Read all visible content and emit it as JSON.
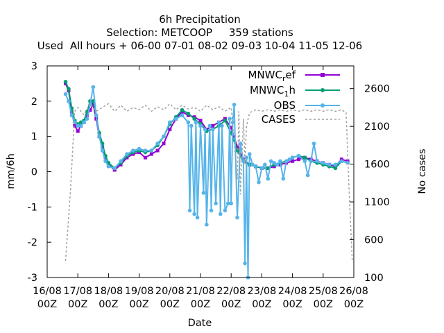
{
  "chart_data": {
    "type": "line",
    "title_lines": [
      "6h Precipitation",
      "Selection: METCOOP     359 stations",
      "Used  All hours + 06-00 07-01 08-02 09-03 10-04 11-05 12-06"
    ],
    "xlabel": "Date",
    "ylabel": "mm/6h",
    "y2label": "No cases",
    "xlim_days": [
      16,
      26
    ],
    "ylim": [
      -3,
      3
    ],
    "y2lim": [
      100,
      2900
    ],
    "x_ticks": [
      {
        "day": 16,
        "line1": "16/08",
        "line2": "00Z"
      },
      {
        "day": 17,
        "line1": "17/08",
        "line2": "00Z"
      },
      {
        "day": 18,
        "line1": "18/08",
        "line2": "00Z"
      },
      {
        "day": 19,
        "line1": "19/08",
        "line2": "00Z"
      },
      {
        "day": 20,
        "line1": "20/08",
        "line2": "00Z"
      },
      {
        "day": 21,
        "line1": "21/08",
        "line2": "00Z"
      },
      {
        "day": 22,
        "line1": "22/08",
        "line2": "00Z"
      },
      {
        "day": 23,
        "line1": "23/08",
        "line2": "00Z"
      },
      {
        "day": 24,
        "line1": "24/08",
        "line2": "00Z"
      },
      {
        "day": 25,
        "line1": "25/08",
        "line2": "00Z"
      },
      {
        "day": 26,
        "line1": "26/08",
        "line2": "00Z"
      }
    ],
    "y_ticks": [
      {
        "value": -3,
        "label": "-3"
      },
      {
        "value": -2,
        "label": "-2"
      },
      {
        "value": -1,
        "label": "-1"
      },
      {
        "value": 0,
        "label": "0"
      },
      {
        "value": 1,
        "label": "1"
      },
      {
        "value": 2,
        "label": "2"
      },
      {
        "value": 3,
        "label": "3"
      }
    ],
    "y2_ticks": [
      {
        "value": 100,
        "label": "100"
      },
      {
        "value": 600,
        "label": "600"
      },
      {
        "value": 1100,
        "label": "1100"
      },
      {
        "value": 1600,
        "label": "1600"
      },
      {
        "value": 2100,
        "label": "2100"
      },
      {
        "value": 2600,
        "label": "2600"
      }
    ],
    "legend_position": "top-right",
    "series": [
      {
        "name_main": "MNWC",
        "name_sub": "r",
        "name_tail": "ef",
        "color": "#9400d3",
        "marker": "square",
        "axis": "y1",
        "x": [
          16.6,
          16.7,
          16.8,
          16.9,
          17.0,
          17.1,
          17.2,
          17.3,
          17.4,
          17.5,
          17.6,
          17.7,
          17.8,
          17.9,
          18.0,
          18.2,
          18.4,
          18.6,
          18.8,
          19.0,
          19.2,
          19.4,
          19.6,
          19.8,
          20.0,
          20.2,
          20.4,
          20.6,
          20.8,
          21.0,
          21.2,
          21.4,
          21.6,
          21.8,
          22.0,
          22.2,
          22.4,
          22.6,
          22.8,
          23.0,
          23.2,
          23.4,
          23.6,
          23.8,
          24.0,
          24.2,
          24.4,
          24.6,
          24.8,
          25.0,
          25.2,
          25.4,
          25.6,
          25.8
        ],
        "values": [
          2.5,
          2.3,
          1.7,
          1.3,
          1.15,
          1.3,
          1.4,
          1.6,
          1.75,
          1.9,
          1.5,
          1.0,
          0.7,
          0.4,
          0.2,
          0.05,
          0.2,
          0.4,
          0.5,
          0.55,
          0.4,
          0.5,
          0.6,
          0.8,
          1.2,
          1.5,
          1.7,
          1.6,
          1.55,
          1.45,
          1.2,
          1.3,
          1.4,
          1.5,
          1.25,
          0.7,
          0.35,
          0.2,
          0.15,
          0.1,
          0.1,
          0.15,
          0.2,
          0.25,
          0.3,
          0.35,
          0.4,
          0.35,
          0.3,
          0.25,
          0.2,
          0.15,
          0.35,
          0.3
        ]
      },
      {
        "name_main": "MNWC",
        "name_sub": "1",
        "name_tail": "h",
        "color": "#009e73",
        "marker": "circle",
        "axis": "y1",
        "x": [
          16.6,
          16.7,
          16.8,
          16.9,
          17.0,
          17.1,
          17.2,
          17.3,
          17.4,
          17.5,
          17.6,
          17.7,
          17.8,
          17.9,
          18.0,
          18.2,
          18.4,
          18.6,
          18.8,
          19.0,
          19.2,
          19.4,
          19.6,
          19.8,
          20.0,
          20.2,
          20.4,
          20.6,
          20.8,
          21.0,
          21.2,
          21.4,
          21.6,
          21.8,
          22.0,
          22.2,
          22.4,
          22.6,
          22.8,
          23.0,
          23.2,
          23.4,
          23.6,
          23.8,
          24.0,
          24.2,
          24.4,
          24.6,
          24.8,
          25.0,
          25.2,
          25.4,
          25.6,
          25.8
        ],
        "values": [
          2.55,
          2.35,
          1.8,
          1.45,
          1.35,
          1.4,
          1.45,
          1.7,
          2.0,
          2.0,
          1.6,
          1.1,
          0.8,
          0.45,
          0.25,
          0.1,
          0.25,
          0.45,
          0.55,
          0.6,
          0.55,
          0.6,
          0.75,
          1.0,
          1.35,
          1.55,
          1.75,
          1.65,
          1.5,
          1.35,
          1.15,
          1.2,
          1.3,
          1.45,
          1.1,
          0.6,
          0.3,
          0.2,
          0.15,
          0.1,
          0.1,
          0.2,
          0.25,
          0.3,
          0.4,
          0.45,
          0.4,
          0.3,
          0.25,
          0.2,
          0.15,
          0.1,
          0.3,
          0.25
        ]
      },
      {
        "name_main": "OBS",
        "name_sub": "",
        "name_tail": "",
        "color": "#56b4e9",
        "marker": "circle",
        "axis": "y1",
        "x": [
          16.6,
          16.7,
          16.8,
          16.9,
          17.0,
          17.1,
          17.2,
          17.3,
          17.4,
          17.5,
          17.6,
          17.7,
          17.8,
          17.9,
          18.0,
          18.2,
          18.4,
          18.6,
          18.8,
          19.0,
          19.2,
          19.4,
          19.6,
          19.8,
          20.0,
          20.2,
          20.4,
          20.6,
          20.65,
          20.7,
          20.8,
          20.85,
          20.9,
          21.0,
          21.1,
          21.15,
          21.2,
          21.3,
          21.35,
          21.4,
          21.5,
          21.6,
          21.65,
          21.7,
          21.8,
          21.9,
          21.95,
          22.0,
          22.05,
          22.1,
          22.2,
          22.3,
          22.4,
          22.45,
          22.5,
          22.55,
          22.6,
          22.7,
          22.8,
          22.9,
          23.0,
          23.1,
          23.2,
          23.3,
          23.4,
          23.5,
          23.6,
          23.7,
          23.8,
          23.9,
          24.0,
          24.2,
          24.4,
          24.5,
          24.6,
          24.7,
          24.8,
          25.0,
          25.2,
          25.4,
          25.6,
          25.8
        ],
        "values": [
          2.2,
          2.0,
          1.6,
          1.4,
          1.3,
          1.3,
          1.4,
          1.5,
          1.9,
          2.4,
          1.6,
          1.0,
          0.6,
          0.3,
          0.15,
          0.1,
          0.3,
          0.5,
          0.6,
          0.65,
          0.6,
          0.6,
          0.8,
          1.0,
          1.4,
          1.5,
          1.6,
          1.4,
          -1.1,
          1.3,
          -1.2,
          1.4,
          -1.3,
          1.3,
          -0.6,
          1.2,
          -1.5,
          1.3,
          -1.1,
          1.2,
          -0.9,
          1.4,
          -1.2,
          1.3,
          -1.1,
          -0.9,
          1.5,
          -0.9,
          1.4,
          1.9,
          -1.3,
          0.8,
          0.3,
          -2.6,
          0.4,
          -3.0,
          0.5,
          0.2,
          0.15,
          -0.3,
          0.1,
          0.2,
          -0.2,
          0.3,
          0.25,
          0.2,
          0.3,
          -0.2,
          0.3,
          0.35,
          0.4,
          0.45,
          0.3,
          -0.1,
          0.3,
          0.8,
          0.3,
          0.25,
          0.2,
          0.2,
          0.3,
          0.25
        ]
      },
      {
        "name_main": "CASES",
        "name_sub": "",
        "name_tail": "",
        "color": "#a0a0a0",
        "marker": "none",
        "dashed": true,
        "axis": "y2",
        "x": [
          16.6,
          16.75,
          16.9,
          17.0,
          17.2,
          17.4,
          17.6,
          17.8,
          18.0,
          18.2,
          18.4,
          18.6,
          18.8,
          19.0,
          19.2,
          19.4,
          19.6,
          19.8,
          20.0,
          20.2,
          20.4,
          20.6,
          20.8,
          21.0,
          21.2,
          21.4,
          21.6,
          21.8,
          22.0,
          22.1,
          22.2,
          22.25,
          22.3,
          22.4,
          22.45,
          22.5,
          22.6,
          22.7,
          22.8,
          23.0,
          23.2,
          23.4,
          23.6,
          23.8,
          24.0,
          24.2,
          24.4,
          24.6,
          24.8,
          25.0,
          25.2,
          25.4,
          25.6,
          25.75,
          25.85,
          25.95
        ],
        "values": [
          320,
          1200,
          2300,
          2350,
          2250,
          2400,
          2300,
          2350,
          2400,
          2300,
          2380,
          2300,
          2350,
          2320,
          2380,
          2300,
          2360,
          2320,
          2400,
          2320,
          2380,
          2330,
          2350,
          2300,
          2380,
          2320,
          2360,
          2300,
          2350,
          1900,
          1400,
          2300,
          1200,
          2200,
          1600,
          2100,
          2280,
          2300,
          2320,
          2300,
          2320,
          2300,
          2320,
          2300,
          2320,
          2300,
          2320,
          2300,
          2320,
          2300,
          2320,
          2300,
          2320,
          2280,
          1200,
          320
        ]
      }
    ]
  }
}
